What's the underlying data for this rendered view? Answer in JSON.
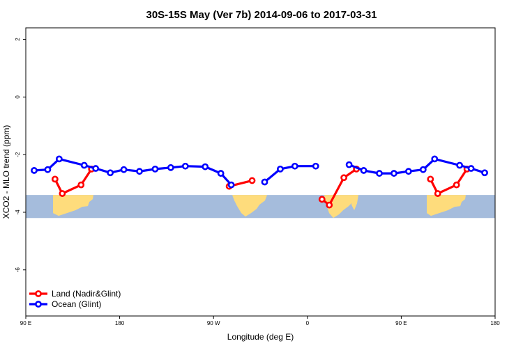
{
  "chart_data": {
    "type": "line",
    "title": "30S-15S May (Ver 7b)   2014-09-06 to 2017-03-31",
    "xlabel": "Longitude (deg E)",
    "ylabel": "XCO2 - MLO trend (ppm)",
    "xlim": [
      90,
      540
    ],
    "ylim": [
      -7.6,
      2.4
    ],
    "x_ticks": [
      {
        "value": 90,
        "label": "90 E"
      },
      {
        "value": 180,
        "label": "180"
      },
      {
        "value": 270,
        "label": "90 W"
      },
      {
        "value": 360,
        "label": "0"
      },
      {
        "value": 450,
        "label": "90 E"
      },
      {
        "value": 540,
        "label": "180"
      }
    ],
    "y_ticks": [
      {
        "value": 2,
        "label": "2"
      },
      {
        "value": 0,
        "label": "0"
      },
      {
        "value": -2,
        "label": "-2"
      },
      {
        "value": -4,
        "label": "-4"
      },
      {
        "value": -6,
        "label": "-6"
      }
    ],
    "grid": false,
    "legend_position": "bottom-left",
    "map_strip": {
      "y_range": [
        -4.2,
        -3.4
      ],
      "ocean_color": "#a5bcdc",
      "land_color": "#fedc7c"
    },
    "series": [
      {
        "name": "Land (Nadir&Glint)",
        "color": "#ff0000",
        "segments": [
          [
            [
              118,
              -2.85
            ],
            [
              125,
              -3.35
            ],
            [
              143,
              -3.05
            ],
            [
              153,
              -2.5
            ]
          ],
          [
            [
              285,
              -3.1
            ],
            [
              307,
              -2.9
            ]
          ],
          [
            [
              374,
              -3.55
            ],
            [
              381,
              -3.75
            ],
            [
              395,
              -2.8
            ],
            [
              407,
              -2.5
            ]
          ],
          [
            [
              478,
              -2.85
            ],
            [
              485,
              -3.35
            ],
            [
              503,
              -3.05
            ],
            [
              513,
              -2.5
            ]
          ]
        ]
      },
      {
        "name": "Ocean (Glint)",
        "color": "#0000ff",
        "segments": [
          [
            [
              98,
              -2.55
            ],
            [
              111,
              -2.52
            ],
            [
              122,
              -2.15
            ],
            [
              146,
              -2.37
            ],
            [
              157,
              -2.48
            ],
            [
              171,
              -2.63
            ],
            [
              184,
              -2.52
            ],
            [
              199,
              -2.58
            ],
            [
              214,
              -2.5
            ],
            [
              229,
              -2.45
            ],
            [
              243,
              -2.4
            ],
            [
              262,
              -2.42
            ],
            [
              277,
              -2.65
            ],
            [
              287,
              -3.05
            ]
          ],
          [
            [
              319,
              -2.95
            ],
            [
              334,
              -2.5
            ],
            [
              348,
              -2.4
            ],
            [
              368,
              -2.4
            ]
          ],
          [
            [
              400,
              -2.35
            ],
            [
              414,
              -2.55
            ],
            [
              429,
              -2.65
            ],
            [
              443,
              -2.65
            ],
            [
              457,
              -2.58
            ],
            [
              471,
              -2.52
            ],
            [
              482,
              -2.15
            ],
            [
              506,
              -2.37
            ],
            [
              517,
              -2.48
            ],
            [
              530,
              -2.63
            ]
          ]
        ]
      }
    ]
  }
}
